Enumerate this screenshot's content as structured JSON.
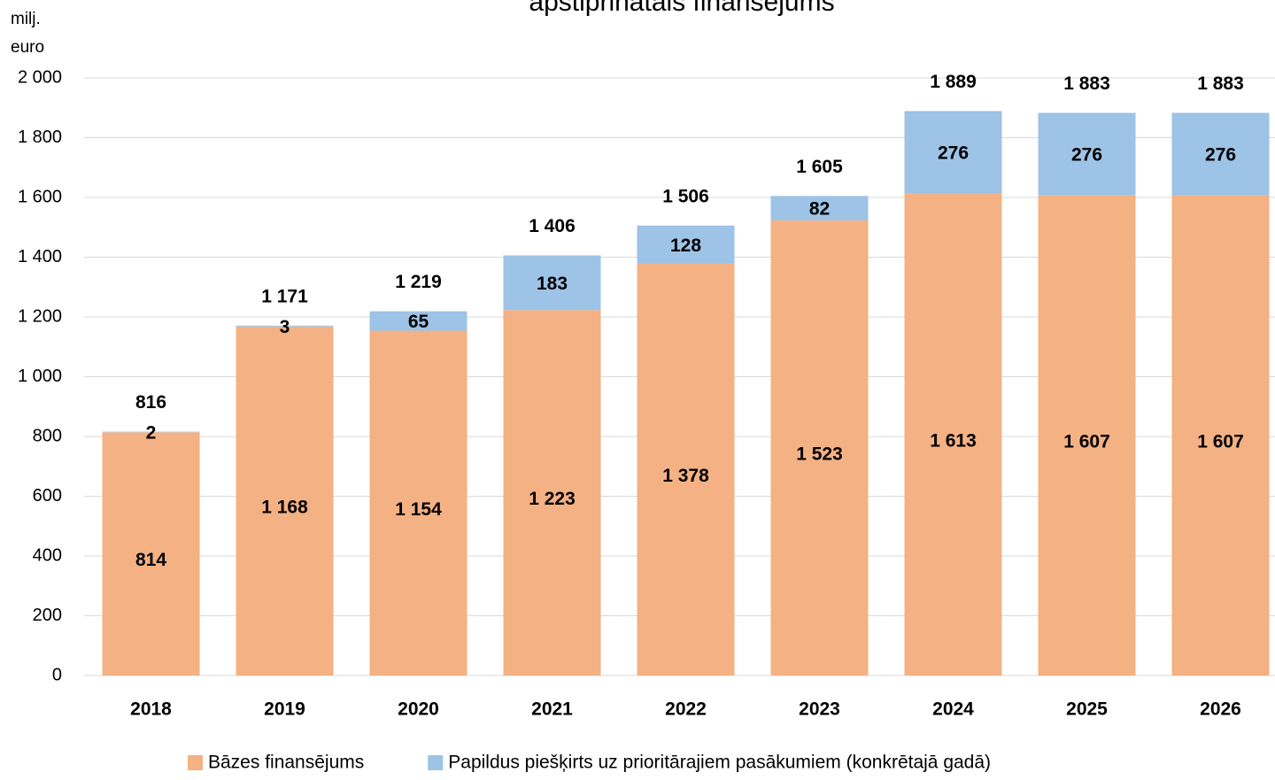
{
  "chart_data": {
    "type": "stacked_bar",
    "title": "apstiprinātais finansējums",
    "y_label": "milj. euro",
    "categories": [
      "2018",
      "2019",
      "2020",
      "2021",
      "2022",
      "2023",
      "2024",
      "2025",
      "2026"
    ],
    "series": [
      {
        "name": "Bāzes finansējums",
        "color": "#f4b183",
        "values": [
          814,
          1168,
          1154,
          1223,
          1378,
          1523,
          1613,
          1607,
          1607
        ],
        "value_labels": [
          "814",
          "1 168",
          "1 154",
          "1 223",
          "1 378",
          "1 523",
          "1 613",
          "1 607",
          "1 607"
        ]
      },
      {
        "name": "Papildus piešķirts uz prioritārajiem pasākumiem (konkrētajā gadā)",
        "color": "#9dc3e6",
        "values": [
          2,
          3,
          65,
          183,
          128,
          82,
          276,
          276,
          276
        ],
        "value_labels": [
          "2",
          "3",
          "65",
          "183",
          "128",
          "82",
          "276",
          "276",
          "276"
        ]
      }
    ],
    "totals": {
      "values": [
        816,
        1171,
        1219,
        1406,
        1506,
        1605,
        1889,
        1883,
        1883
      ],
      "value_labels": [
        "816",
        "1 171",
        "1 219",
        "1 406",
        "1 506",
        "1 605",
        "1 889",
        "1 883",
        "1 883"
      ]
    },
    "ylim": [
      0,
      2000
    ],
    "yticks": [
      0,
      200,
      400,
      600,
      800,
      {
        "value": 1000,
        "label": "1 000"
      },
      {
        "value": 1200,
        "label": "1 200"
      },
      {
        "value": 1400,
        "label": "1 400"
      },
      {
        "value": 1600,
        "label": "1 600"
      },
      {
        "value": 1800,
        "label": "1 800"
      },
      {
        "value": 2000,
        "label": "2 000"
      }
    ],
    "grid": true,
    "legend": "bottom"
  }
}
